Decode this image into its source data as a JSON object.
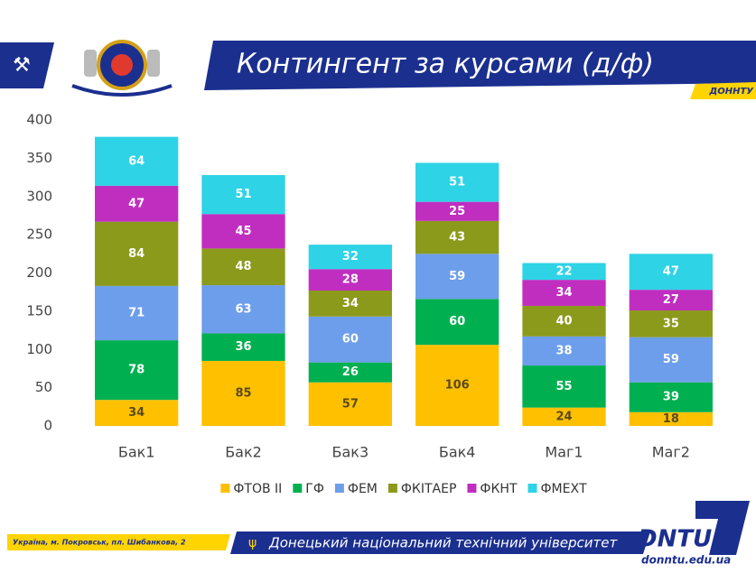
{
  "chart_data": {
    "type": "stacked_bar",
    "title": "Контингент за курсами (д/ф)",
    "categories": [
      "Бак1",
      "Бак2",
      "Бак3",
      "Бак4",
      "Маг1",
      "Маг2"
    ],
    "series": [
      {
        "name": "ФТОВ ІІ",
        "color": "#ffc000",
        "label_color": "#5a4a1a",
        "values": [
          34,
          85,
          57,
          106,
          24,
          18
        ]
      },
      {
        "name": "ГФ",
        "color": "#00b050",
        "label_color": "#ffffff",
        "values": [
          78,
          36,
          26,
          60,
          55,
          39
        ]
      },
      {
        "name": "ФЕМ",
        "color": "#6d9eeb",
        "label_color": "#ffffff",
        "values": [
          71,
          63,
          60,
          59,
          38,
          59
        ]
      },
      {
        "name": "ФКІТАЕР",
        "color": "#8c9a1c",
        "label_color": "#ffffff",
        "values": [
          84,
          48,
          34,
          43,
          40,
          35
        ]
      },
      {
        "name": "ФКНТ",
        "color": "#c02ec0",
        "label_color": "#ffffff",
        "values": [
          47,
          45,
          28,
          25,
          34,
          27
        ]
      },
      {
        "name": "ФМЕХТ",
        "color": "#2ed3e6",
        "label_color": "#ffffff",
        "values": [
          64,
          51,
          32,
          51,
          22,
          47
        ]
      }
    ],
    "ylim": [
      0,
      400
    ],
    "yticks": [
      0,
      50,
      100,
      150,
      200,
      250,
      300,
      350,
      400
    ],
    "grid": false,
    "legend": "bottom"
  },
  "header": {
    "tag": "ДОННТУ"
  },
  "footer": {
    "address": "Україна, м. Покровськ, пл. Шибанкова, 2",
    "university": "Донецький національний технічний університет",
    "logo": "DNTU",
    "site": "donntu.edu.ua"
  }
}
